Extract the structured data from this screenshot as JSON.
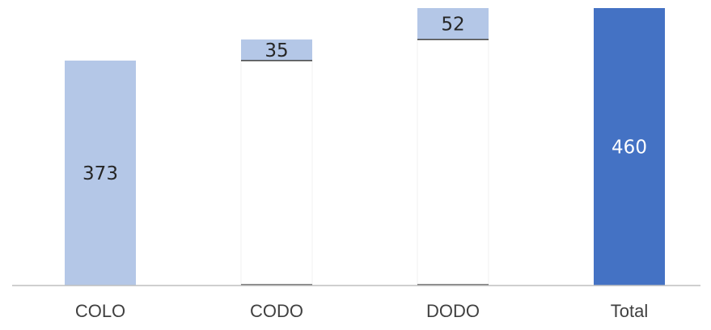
{
  "chart_data": {
    "type": "bar",
    "subtype": "waterfall",
    "categories": [
      "COLO",
      "CODO",
      "DODO",
      "Total"
    ],
    "values": [
      373,
      35,
      52,
      460
    ],
    "bar_kinds": [
      "increase",
      "increase",
      "increase",
      "total"
    ],
    "data_labels": [
      "373",
      "35",
      "52",
      "460"
    ],
    "title": "",
    "xlabel": "",
    "ylabel": "",
    "ylim": [
      0,
      460
    ],
    "grid": false,
    "legend": "none",
    "colors": {
      "increase": "#b4c7e7",
      "total": "#4472c4",
      "label_dark": "#262626",
      "label_light": "#ffffff",
      "axis": "#bfbfbf",
      "category_text": "#404040"
    }
  }
}
